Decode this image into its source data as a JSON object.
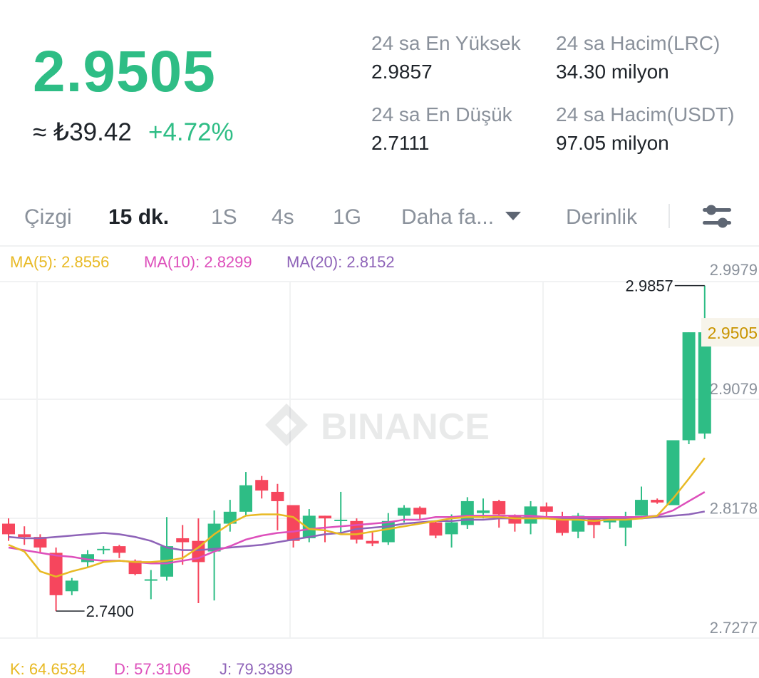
{
  "ticker": {
    "last_price": "2.9505",
    "fiat_price": "≈ ₺39.42",
    "change_pct": "+4.72%"
  },
  "stats": {
    "high_label": "24 sa En Yüksek",
    "high_value": "2.9857",
    "low_label": "24 sa En Düşük",
    "low_value": "2.7111",
    "vol_base_label": "24 sa Hacim(LRC)",
    "vol_base_value": "34.30 milyon",
    "vol_quote_label": "24 sa Hacim(USDT)",
    "vol_quote_value": "97.05 milyon"
  },
  "tabs": {
    "line": "Çizgi",
    "m15": "15 dk.",
    "h1": "1S",
    "h4": "4s",
    "d1": "1G",
    "more": "Daha fa...",
    "depth": "Derinlik"
  },
  "indicators": {
    "ma5": "MA(5): 2.8556",
    "ma10": "MA(10): 2.8299",
    "ma20": "MA(20): 2.8152",
    "k": "K: 64.6534",
    "d": "D: 57.3106",
    "j": "J: 79.3389"
  },
  "colors": {
    "up": "#2ebd85",
    "down": "#f6465d",
    "ma5": "#e8b923",
    "ma10": "#dd4fbb",
    "ma20": "#8e63b8"
  },
  "chart_data": {
    "type": "candlestick",
    "interval": "15 dk.",
    "watermark": "BINANCE",
    "y_ticks": [
      "2.9979",
      "2.9079",
      "2.8178",
      "2.7277"
    ],
    "ylim": [
      2.7277,
      2.9979
    ],
    "current_price_label": "2.9505",
    "high_marker": "2.9857",
    "low_marker": "2.7400",
    "ohlc": [
      [
        2.806,
        2.81,
        2.793,
        2.798
      ],
      [
        2.798,
        2.804,
        2.79,
        2.796
      ],
      [
        2.796,
        2.798,
        2.784,
        2.788
      ],
      [
        2.784,
        2.788,
        2.74,
        2.752
      ],
      [
        2.755,
        2.765,
        2.752,
        2.763
      ],
      [
        2.777,
        2.786,
        2.773,
        2.783
      ],
      [
        2.786,
        2.789,
        2.783,
        2.787
      ],
      [
        2.789,
        2.79,
        2.78,
        2.784
      ],
      [
        2.778,
        2.779,
        2.767,
        2.768
      ],
      [
        2.764,
        2.771,
        2.749,
        2.764
      ],
      [
        2.766,
        2.811,
        2.763,
        2.789
      ],
      [
        2.795,
        2.805,
        2.775,
        2.792
      ],
      [
        2.793,
        2.81,
        2.746,
        2.777
      ],
      [
        2.785,
        2.816,
        2.748,
        2.806
      ],
      [
        2.806,
        2.824,
        2.8,
        2.815
      ],
      [
        2.815,
        2.845,
        2.812,
        2.835
      ],
      [
        2.839,
        2.842,
        2.825,
        2.831
      ],
      [
        2.83,
        2.836,
        2.801,
        2.823
      ],
      [
        2.82,
        2.819,
        2.788,
        2.793
      ],
      [
        2.795,
        2.817,
        2.792,
        2.812
      ],
      [
        2.812,
        2.812,
        2.792,
        2.81
      ],
      [
        2.808,
        2.83,
        2.799,
        2.809
      ],
      [
        2.808,
        2.81,
        2.791,
        2.794
      ],
      [
        2.793,
        2.8,
        2.789,
        2.791
      ],
      [
        2.792,
        2.814,
        2.79,
        2.808
      ],
      [
        2.812,
        2.82,
        2.807,
        2.818
      ],
      [
        2.818,
        2.819,
        2.809,
        2.813
      ],
      [
        2.807,
        2.808,
        2.795,
        2.797
      ],
      [
        2.798,
        2.813,
        2.788,
        2.807
      ],
      [
        2.805,
        2.826,
        2.802,
        2.823
      ],
      [
        2.814,
        2.825,
        2.81,
        2.816
      ],
      [
        2.823,
        2.824,
        2.803,
        2.813
      ],
      [
        2.812,
        2.813,
        2.8,
        2.806
      ],
      [
        2.806,
        2.823,
        2.798,
        2.819
      ],
      [
        2.819,
        2.822,
        2.81,
        2.815
      ],
      [
        2.81,
        2.815,
        2.797,
        2.799
      ],
      [
        2.8,
        2.814,
        2.795,
        2.812
      ],
      [
        2.81,
        2.811,
        2.795,
        2.805
      ],
      [
        2.807,
        2.811,
        2.802,
        2.81
      ],
      [
        2.803,
        2.815,
        2.789,
        2.81
      ],
      [
        2.812,
        2.834,
        2.812,
        2.824
      ],
      [
        2.824,
        2.825,
        2.821,
        2.822
      ],
      [
        2.82,
        2.869,
        2.82,
        2.869
      ],
      [
        2.869,
        2.9505,
        2.866,
        2.9505
      ],
      [
        2.874,
        2.9857,
        2.87,
        2.9505
      ]
    ],
    "ma5": [
      2.79,
      2.785,
      2.77,
      2.766,
      2.77,
      2.773,
      2.777,
      2.778,
      2.777,
      2.777,
      2.778,
      2.78,
      2.788,
      2.798,
      2.806,
      2.812,
      2.813,
      2.813,
      2.811,
      2.802,
      2.801,
      2.798,
      2.798,
      2.8,
      2.802,
      2.804,
      2.806,
      2.808,
      2.81,
      2.811,
      2.811,
      2.811,
      2.81,
      2.81,
      2.81,
      2.809,
      2.809,
      2.808,
      2.809,
      2.809,
      2.81,
      2.812,
      2.825,
      2.84,
      2.8556
    ],
    "ma10": [
      2.788,
      2.786,
      2.784,
      2.782,
      2.781,
      2.779,
      2.778,
      2.778,
      2.777,
      2.776,
      2.776,
      2.778,
      2.78,
      2.785,
      2.789,
      2.794,
      2.797,
      2.799,
      2.8,
      2.802,
      2.803,
      2.804,
      2.805,
      2.806,
      2.807,
      2.809,
      2.809,
      2.811,
      2.811,
      2.812,
      2.812,
      2.812,
      2.812,
      2.812,
      2.811,
      2.811,
      2.811,
      2.811,
      2.811,
      2.811,
      2.811,
      2.812,
      2.816,
      2.823,
      2.8299
    ],
    "ma20": [
      2.796,
      2.795,
      2.795,
      2.796,
      2.797,
      2.798,
      2.799,
      2.798,
      2.796,
      2.793,
      2.788,
      2.786,
      2.786,
      2.787,
      2.788,
      2.789,
      2.79,
      2.792,
      2.794,
      2.796,
      2.798,
      2.799,
      2.802,
      2.803,
      2.804,
      2.806,
      2.807,
      2.808,
      2.808,
      2.809,
      2.809,
      2.81,
      2.81,
      2.811,
      2.81,
      2.81,
      2.81,
      2.81,
      2.81,
      2.81,
      2.81,
      2.811,
      2.812,
      2.813,
      2.8152
    ]
  }
}
